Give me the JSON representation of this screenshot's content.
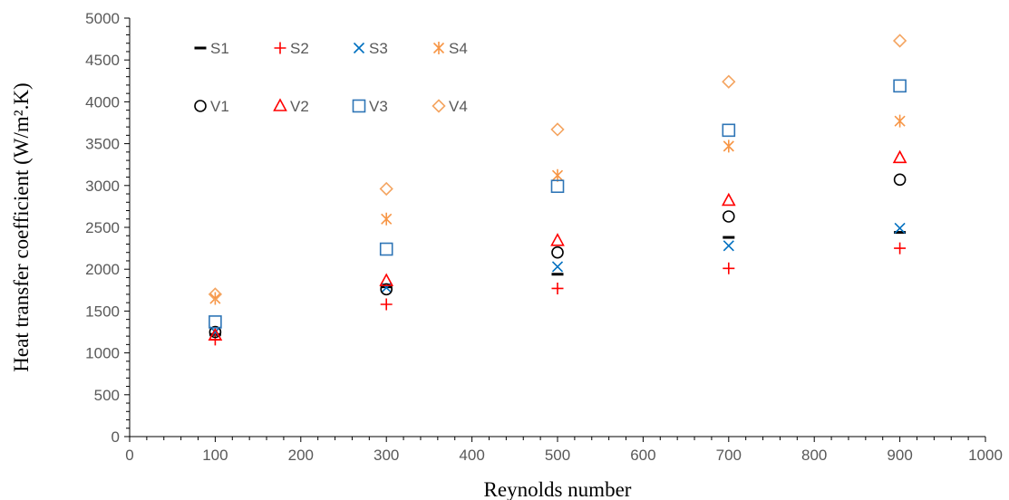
{
  "chart_data": {
    "type": "scatter",
    "xlabel": "Reynolds number",
    "ylabel": "Heat transfer coefficient (W/m².K)",
    "xlim": [
      0,
      1000
    ],
    "ylim": [
      0,
      5000
    ],
    "x_ticks": [
      "0",
      "100",
      "200",
      "300",
      "400",
      "500",
      "600",
      "700",
      "800",
      "900",
      "1000"
    ],
    "y_ticks": [
      "0",
      "500",
      "1000",
      "1500",
      "2000",
      "2500",
      "3000",
      "3500",
      "4000",
      "4500",
      "5000"
    ],
    "grid": false,
    "legend_position": "top-left",
    "x": [
      100,
      300,
      500,
      700,
      900
    ],
    "series": [
      {
        "name": "S1",
        "marker": "dash",
        "color": "#000000",
        "values": [
          1220,
          1790,
          1940,
          2380,
          2440
        ]
      },
      {
        "name": "S2",
        "marker": "plus",
        "color": "#ff0000",
        "values": [
          1160,
          1580,
          1770,
          2010,
          2250
        ]
      },
      {
        "name": "S3",
        "marker": "x",
        "color": "#0070c0",
        "values": [
          1250,
          1780,
          2030,
          2280,
          2490
        ]
      },
      {
        "name": "S4",
        "marker": "asterisk",
        "color": "#f79646",
        "values": [
          1650,
          2600,
          3120,
          3470,
          3770
        ]
      },
      {
        "name": "V1",
        "marker": "circle",
        "color": "#000000",
        "values": [
          1250,
          1760,
          2200,
          2630,
          3070
        ]
      },
      {
        "name": "V2",
        "marker": "triangle",
        "color": "#ff0000",
        "values": [
          1210,
          1860,
          2340,
          2820,
          3330
        ]
      },
      {
        "name": "V3",
        "marker": "square",
        "color": "#2e75b6",
        "values": [
          1370,
          2240,
          2990,
          3660,
          4190
        ]
      },
      {
        "name": "V4",
        "marker": "diamond",
        "color": "#f4a460",
        "values": [
          1700,
          2960,
          3670,
          4240,
          4730
        ]
      }
    ]
  }
}
